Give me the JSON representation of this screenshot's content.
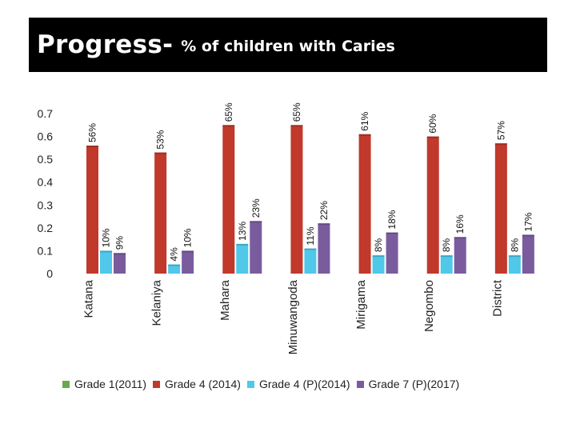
{
  "title": {
    "main": "Progress-",
    "sub": "% of children with Caries"
  },
  "colors": {
    "grade1": "#6aa84f",
    "grade4": "#c0392b",
    "grade4p": "#4fc8ea",
    "grade7": "#7a5c9e"
  },
  "chart_data": {
    "type": "bar",
    "categories": [
      "Katana",
      "Kelaniya",
      "Mahara",
      "Minuwangoda",
      "Mirigama",
      "Negombo",
      "District"
    ],
    "series": [
      {
        "name": "Grade 1(2011)",
        "key": "grade1",
        "values": [
          null,
          null,
          null,
          null,
          null,
          null,
          null
        ],
        "labels": [
          "",
          "",
          "",
          "",
          "",
          "",
          ""
        ]
      },
      {
        "name": "Grade 4 (2014)",
        "key": "grade4",
        "values": [
          0.56,
          0.53,
          0.65,
          0.65,
          0.61,
          0.6,
          0.57
        ],
        "labels": [
          "56%",
          "53%",
          "65%",
          "65%",
          "61%",
          "60%",
          "57%"
        ]
      },
      {
        "name": "Grade 4 (P)(2014)",
        "key": "grade4p",
        "values": [
          0.1,
          0.04,
          0.13,
          0.11,
          0.08,
          0.08,
          0.08
        ],
        "labels": [
          "10%",
          "4%",
          "13%",
          "11%",
          "8%",
          "8%",
          "8%"
        ]
      },
      {
        "name": "Grade 7 (P)(2017)",
        "key": "grade7",
        "values": [
          0.09,
          0.1,
          0.23,
          0.22,
          0.18,
          0.16,
          0.17
        ],
        "labels": [
          "9%",
          "10%",
          "23%",
          "22%",
          "18%",
          "16%",
          "17%"
        ]
      }
    ],
    "yticks": [
      "0",
      "0.1",
      "0.2",
      "0.3",
      "0.4",
      "0.5",
      "0.6",
      "0.7"
    ],
    "ylim": [
      0,
      0.7
    ],
    "xlabel": "",
    "ylabel": "",
    "legend_position": "bottom"
  }
}
